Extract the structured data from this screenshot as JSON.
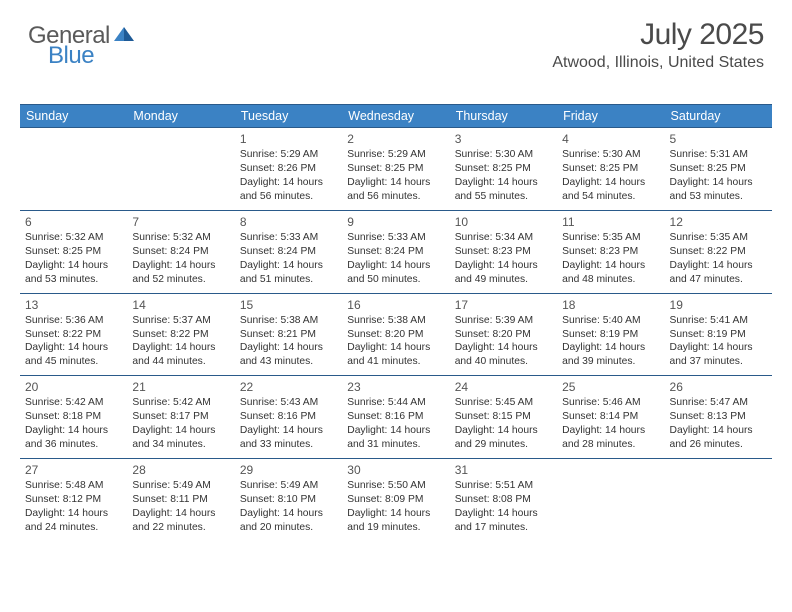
{
  "logo": {
    "general": "General",
    "blue": "Blue"
  },
  "title": "July 2025",
  "location": "Atwood, Illinois, United States",
  "header_color": "#3b82c4",
  "border_color": "#2a5a8a",
  "dow": [
    "Sunday",
    "Monday",
    "Tuesday",
    "Wednesday",
    "Thursday",
    "Friday",
    "Saturday"
  ],
  "weeks": [
    [
      null,
      null,
      {
        "n": "1",
        "sr": "5:29 AM",
        "ss": "8:26 PM",
        "dl": "14 hours and 56 minutes."
      },
      {
        "n": "2",
        "sr": "5:29 AM",
        "ss": "8:25 PM",
        "dl": "14 hours and 56 minutes."
      },
      {
        "n": "3",
        "sr": "5:30 AM",
        "ss": "8:25 PM",
        "dl": "14 hours and 55 minutes."
      },
      {
        "n": "4",
        "sr": "5:30 AM",
        "ss": "8:25 PM",
        "dl": "14 hours and 54 minutes."
      },
      {
        "n": "5",
        "sr": "5:31 AM",
        "ss": "8:25 PM",
        "dl": "14 hours and 53 minutes."
      }
    ],
    [
      {
        "n": "6",
        "sr": "5:32 AM",
        "ss": "8:25 PM",
        "dl": "14 hours and 53 minutes."
      },
      {
        "n": "7",
        "sr": "5:32 AM",
        "ss": "8:24 PM",
        "dl": "14 hours and 52 minutes."
      },
      {
        "n": "8",
        "sr": "5:33 AM",
        "ss": "8:24 PM",
        "dl": "14 hours and 51 minutes."
      },
      {
        "n": "9",
        "sr": "5:33 AM",
        "ss": "8:24 PM",
        "dl": "14 hours and 50 minutes."
      },
      {
        "n": "10",
        "sr": "5:34 AM",
        "ss": "8:23 PM",
        "dl": "14 hours and 49 minutes."
      },
      {
        "n": "11",
        "sr": "5:35 AM",
        "ss": "8:23 PM",
        "dl": "14 hours and 48 minutes."
      },
      {
        "n": "12",
        "sr": "5:35 AM",
        "ss": "8:22 PM",
        "dl": "14 hours and 47 minutes."
      }
    ],
    [
      {
        "n": "13",
        "sr": "5:36 AM",
        "ss": "8:22 PM",
        "dl": "14 hours and 45 minutes."
      },
      {
        "n": "14",
        "sr": "5:37 AM",
        "ss": "8:22 PM",
        "dl": "14 hours and 44 minutes."
      },
      {
        "n": "15",
        "sr": "5:38 AM",
        "ss": "8:21 PM",
        "dl": "14 hours and 43 minutes."
      },
      {
        "n": "16",
        "sr": "5:38 AM",
        "ss": "8:20 PM",
        "dl": "14 hours and 41 minutes."
      },
      {
        "n": "17",
        "sr": "5:39 AM",
        "ss": "8:20 PM",
        "dl": "14 hours and 40 minutes."
      },
      {
        "n": "18",
        "sr": "5:40 AM",
        "ss": "8:19 PM",
        "dl": "14 hours and 39 minutes."
      },
      {
        "n": "19",
        "sr": "5:41 AM",
        "ss": "8:19 PM",
        "dl": "14 hours and 37 minutes."
      }
    ],
    [
      {
        "n": "20",
        "sr": "5:42 AM",
        "ss": "8:18 PM",
        "dl": "14 hours and 36 minutes."
      },
      {
        "n": "21",
        "sr": "5:42 AM",
        "ss": "8:17 PM",
        "dl": "14 hours and 34 minutes."
      },
      {
        "n": "22",
        "sr": "5:43 AM",
        "ss": "8:16 PM",
        "dl": "14 hours and 33 minutes."
      },
      {
        "n": "23",
        "sr": "5:44 AM",
        "ss": "8:16 PM",
        "dl": "14 hours and 31 minutes."
      },
      {
        "n": "24",
        "sr": "5:45 AM",
        "ss": "8:15 PM",
        "dl": "14 hours and 29 minutes."
      },
      {
        "n": "25",
        "sr": "5:46 AM",
        "ss": "8:14 PM",
        "dl": "14 hours and 28 minutes."
      },
      {
        "n": "26",
        "sr": "5:47 AM",
        "ss": "8:13 PM",
        "dl": "14 hours and 26 minutes."
      }
    ],
    [
      {
        "n": "27",
        "sr": "5:48 AM",
        "ss": "8:12 PM",
        "dl": "14 hours and 24 minutes."
      },
      {
        "n": "28",
        "sr": "5:49 AM",
        "ss": "8:11 PM",
        "dl": "14 hours and 22 minutes."
      },
      {
        "n": "29",
        "sr": "5:49 AM",
        "ss": "8:10 PM",
        "dl": "14 hours and 20 minutes."
      },
      {
        "n": "30",
        "sr": "5:50 AM",
        "ss": "8:09 PM",
        "dl": "14 hours and 19 minutes."
      },
      {
        "n": "31",
        "sr": "5:51 AM",
        "ss": "8:08 PM",
        "dl": "14 hours and 17 minutes."
      },
      null,
      null
    ]
  ],
  "labels": {
    "sunrise": "Sunrise: ",
    "sunset": "Sunset: ",
    "daylight": "Daylight: "
  }
}
